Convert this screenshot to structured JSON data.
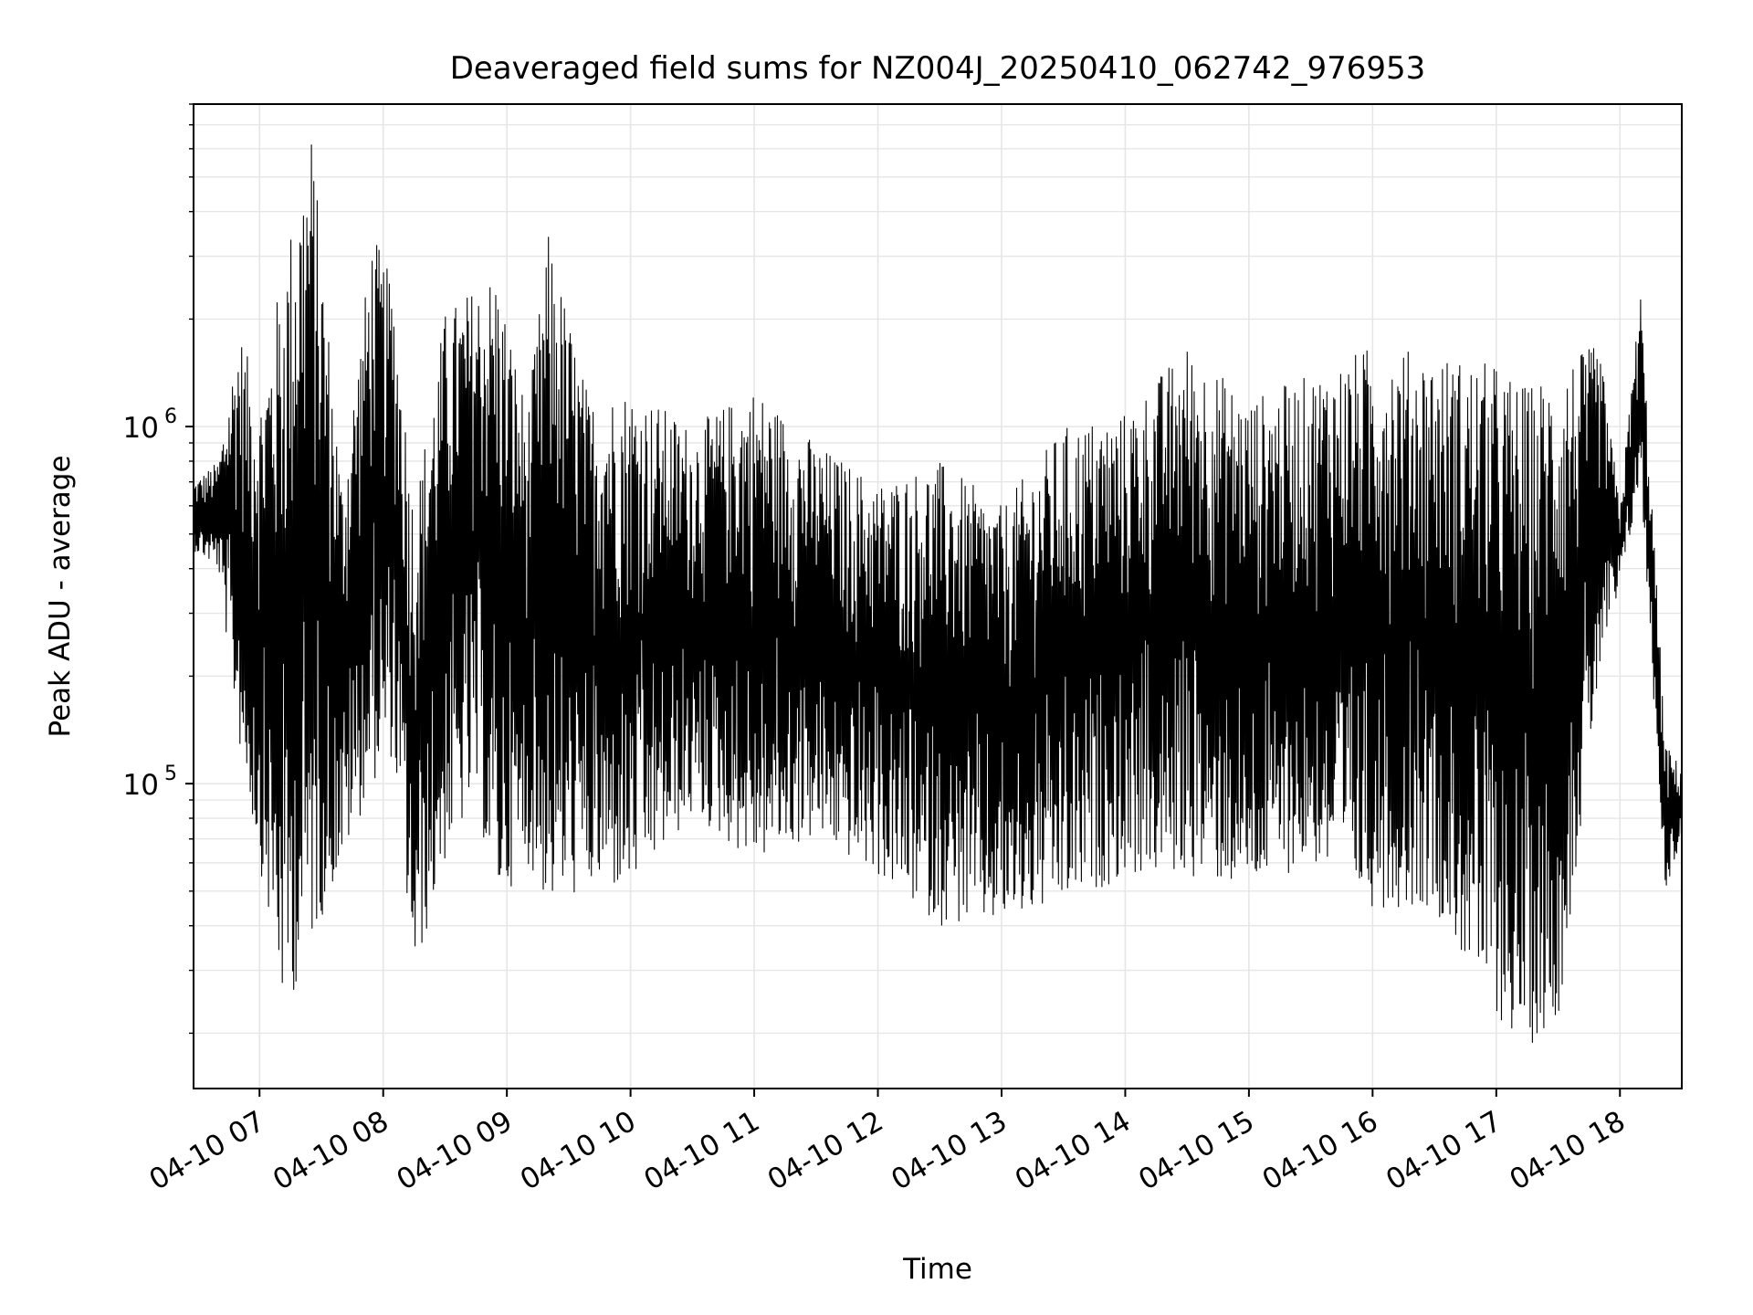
{
  "chart_data": {
    "type": "line",
    "title": "Deaveraged field sums for NZ004J_20250410_062742_976953",
    "xlabel": "Time",
    "ylabel": "Peak ADU - average",
    "yscale": "log",
    "grid": true,
    "line_color": "#000000",
    "grid_color": "#e6e6e6",
    "xlim": [
      "04-10 06:28",
      "04-10 18:30"
    ],
    "ylim": [
      14000,
      8000000
    ],
    "x_ticks": [
      "04-10 07",
      "04-10 08",
      "04-10 09",
      "04-10 10",
      "04-10 11",
      "04-10 12",
      "04-10 13",
      "04-10 14",
      "04-10 15",
      "04-10 16",
      "04-10 17",
      "04-10 18"
    ],
    "y_ticks": [
      {
        "base": "10",
        "exp": "5",
        "value": 100000
      },
      {
        "base": "10",
        "exp": "6",
        "value": 1000000
      }
    ],
    "series": [
      {
        "envelope": [
          {
            "x": "04-10 06:28",
            "low": 450000,
            "high": 700000
          },
          {
            "x": "04-10 06:40",
            "low": 400000,
            "high": 800000
          },
          {
            "x": "04-10 06:50",
            "low": 130000,
            "high": 1900000
          },
          {
            "x": "04-10 07:00",
            "low": 60000,
            "high": 1200000
          },
          {
            "x": "04-10 07:12",
            "low": 22000,
            "high": 3000000
          },
          {
            "x": "04-10 07:25",
            "low": 35000,
            "high": 7000000
          },
          {
            "x": "04-10 07:40",
            "low": 60000,
            "high": 700000
          },
          {
            "x": "04-10 07:55",
            "low": 100000,
            "high": 3500000
          },
          {
            "x": "04-10 08:05",
            "low": 120000,
            "high": 2500000
          },
          {
            "x": "04-10 08:15",
            "low": 28000,
            "high": 600000
          },
          {
            "x": "04-10 08:30",
            "low": 60000,
            "high": 2100000
          },
          {
            "x": "04-10 08:45",
            "low": 90000,
            "high": 2500000
          },
          {
            "x": "04-10 08:55",
            "low": 45000,
            "high": 2800000
          },
          {
            "x": "04-10 09:10",
            "low": 60000,
            "high": 1100000
          },
          {
            "x": "04-10 09:20",
            "low": 45000,
            "high": 3500000
          },
          {
            "x": "04-10 09:40",
            "low": 50000,
            "high": 1200000
          },
          {
            "x": "04-10 10:00",
            "low": 50000,
            "high": 1300000
          },
          {
            "x": "04-10 10:30",
            "low": 80000,
            "high": 1000000
          },
          {
            "x": "04-10 11:00",
            "low": 60000,
            "high": 1300000
          },
          {
            "x": "04-10 11:30",
            "low": 70000,
            "high": 900000
          },
          {
            "x": "04-10 12:00",
            "low": 55000,
            "high": 700000
          },
          {
            "x": "04-10 12:30",
            "low": 40000,
            "high": 800000
          },
          {
            "x": "04-10 13:00",
            "low": 40000,
            "high": 600000
          },
          {
            "x": "04-10 13:30",
            "low": 45000,
            "high": 1000000
          },
          {
            "x": "04-10 14:00",
            "low": 55000,
            "high": 1100000
          },
          {
            "x": "04-10 14:30",
            "low": 55000,
            "high": 1700000
          },
          {
            "x": "04-10 15:00",
            "low": 50000,
            "high": 1200000
          },
          {
            "x": "04-10 15:30",
            "low": 60000,
            "high": 1400000
          },
          {
            "x": "04-10 16:00",
            "low": 45000,
            "high": 1700000
          },
          {
            "x": "04-10 16:30",
            "low": 45000,
            "high": 1600000
          },
          {
            "x": "04-10 17:00",
            "low": 22000,
            "high": 1500000
          },
          {
            "x": "04-10 17:15",
            "low": 18000,
            "high": 1300000
          },
          {
            "x": "04-10 17:30",
            "low": 22000,
            "high": 1500000
          },
          {
            "x": "04-10 17:50",
            "low": 200000,
            "high": 1700000
          },
          {
            "x": "04-10 18:00",
            "low": 350000,
            "high": 600000
          },
          {
            "x": "04-10 18:10",
            "low": 700000,
            "high": 2400000
          },
          {
            "x": "04-10 18:22",
            "low": 50000,
            "high": 130000
          },
          {
            "x": "04-10 18:30",
            "low": 70000,
            "high": 110000
          }
        ]
      }
    ]
  }
}
